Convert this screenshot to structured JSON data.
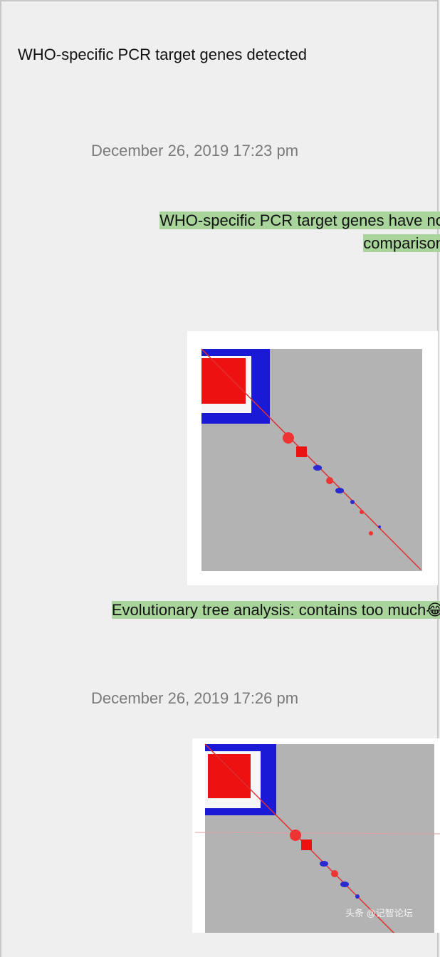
{
  "messages": [
    {
      "text": "WHO-specific PCR target genes detected"
    },
    {
      "timestamp": "December 26, 2019 17:23 pm"
    },
    {
      "text": "WHO-specific PCR target genes have no comparison"
    },
    {
      "text": "Evolutionary tree analysis: contains too much😂"
    },
    {
      "timestamp": "December 26, 2019 17:26 pm"
    },
    {
      "watermark": "头条 @记智论坛"
    }
  ]
}
